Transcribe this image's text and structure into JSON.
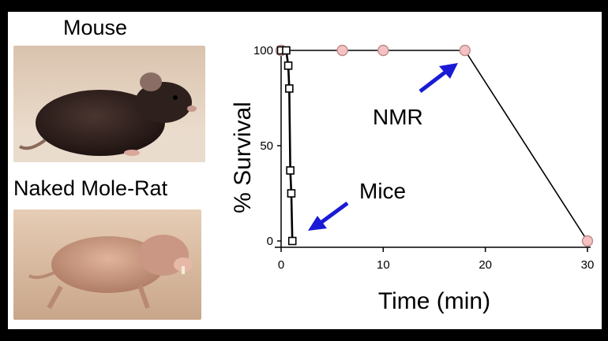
{
  "labels": {
    "mouse": "Mouse",
    "nmr_photo": "Naked Mole-Rat"
  },
  "colors": {
    "arrow": "#1a1ad6",
    "nmr_marker": "#f4c2c2",
    "mice_marker": "#ffffff",
    "line": "#000000"
  },
  "chart_data": {
    "type": "line",
    "xlabel": "Time (min)",
    "ylabel": "% Survival",
    "xlim": [
      0,
      30
    ],
    "ylim": [
      0,
      100
    ],
    "xticks": [
      0,
      10,
      20,
      30
    ],
    "yticks": [
      0,
      50,
      100
    ],
    "grid": false,
    "series": [
      {
        "name": "NMR",
        "marker": "circle",
        "x": [
          0,
          6,
          10,
          18,
          30
        ],
        "y": [
          100,
          100,
          100,
          100,
          0
        ]
      },
      {
        "name": "Mice",
        "marker": "square",
        "x": [
          0,
          0.5,
          0.7,
          0.8,
          0.9,
          1.0,
          1.1
        ],
        "y": [
          100,
          100,
          92,
          80,
          37,
          25,
          0
        ]
      }
    ],
    "annotations": [
      {
        "text": "NMR",
        "series": "NMR"
      },
      {
        "text": "Mice",
        "series": "Mice"
      }
    ]
  }
}
